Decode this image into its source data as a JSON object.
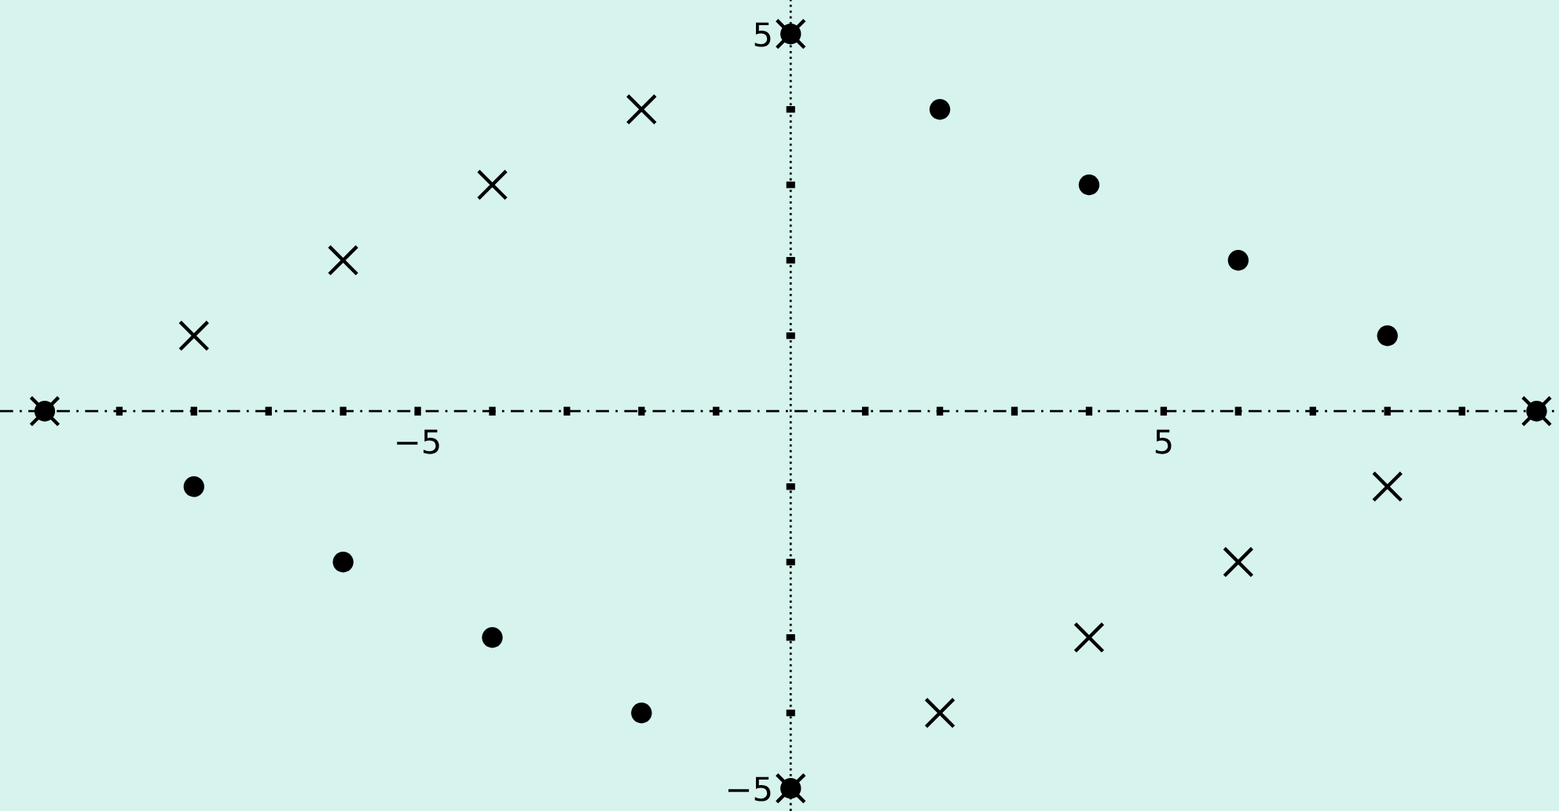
{
  "chart_data": {
    "type": "scatter",
    "xlim": [
      -10.6,
      10.3
    ],
    "ylim": [
      -5.3,
      5.45
    ],
    "xticks": [
      {
        "value": -10,
        "label": null
      },
      {
        "value": -9,
        "label": null
      },
      {
        "value": -8,
        "label": null
      },
      {
        "value": -7,
        "label": null
      },
      {
        "value": -6,
        "label": null
      },
      {
        "value": -5,
        "label": "−5"
      },
      {
        "value": -4,
        "label": null
      },
      {
        "value": -3,
        "label": null
      },
      {
        "value": -2,
        "label": null
      },
      {
        "value": -1,
        "label": null
      },
      {
        "value": 1,
        "label": null
      },
      {
        "value": 2,
        "label": null
      },
      {
        "value": 3,
        "label": null
      },
      {
        "value": 4,
        "label": null
      },
      {
        "value": 5,
        "label": "5"
      },
      {
        "value": 6,
        "label": null
      },
      {
        "value": 7,
        "label": null
      },
      {
        "value": 8,
        "label": null
      },
      {
        "value": 9,
        "label": null
      },
      {
        "value": 10,
        "label": null
      }
    ],
    "yticks": [
      {
        "value": -5,
        "label": "−5"
      },
      {
        "value": -4,
        "label": null
      },
      {
        "value": -3,
        "label": null
      },
      {
        "value": -2,
        "label": null
      },
      {
        "value": -1,
        "label": null
      },
      {
        "value": 1,
        "label": null
      },
      {
        "value": 2,
        "label": null
      },
      {
        "value": 3,
        "label": null
      },
      {
        "value": 4,
        "label": null
      },
      {
        "value": 5,
        "label": "5"
      }
    ],
    "grid": false,
    "legend": false,
    "ref_lines": [
      {
        "axis": "x",
        "value": 0,
        "color": "#000000",
        "line_style": "dotted"
      },
      {
        "axis": "y",
        "value": 0,
        "color": "#000000",
        "line_style": "dashed"
      }
    ],
    "series": [
      {
        "color": "#000000",
        "marker": "cross",
        "x": [
          -10,
          -8,
          -6,
          -4,
          -2,
          0,
          0,
          2,
          4,
          6,
          8,
          10
        ],
        "values": [
          0,
          1,
          2,
          3,
          4,
          5,
          -5,
          -4,
          -3,
          -2,
          -1,
          0
        ]
      },
      {
        "color": "#000000",
        "marker": "circle",
        "x": [
          -10,
          -8,
          -6,
          -4,
          -2,
          0,
          0,
          2,
          4,
          6,
          8,
          10
        ],
        "values": [
          0,
          -1,
          -2,
          -3,
          -4,
          -5,
          5,
          4,
          3,
          2,
          1,
          0
        ]
      }
    ]
  }
}
